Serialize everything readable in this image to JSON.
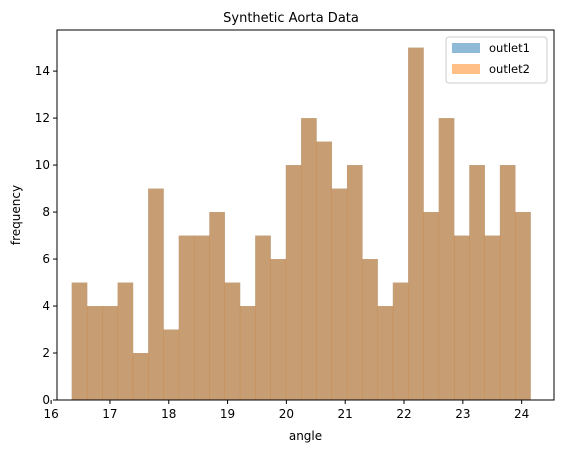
{
  "chart_data": {
    "type": "bar",
    "title": "Synthetic Aorta Data",
    "xlabel": "angle",
    "ylabel": "frequency",
    "xlim": [
      16.1,
      24.55
    ],
    "ylim": [
      0,
      15.75
    ],
    "xticks": [
      "16",
      "17",
      "18",
      "19",
      "20",
      "21",
      "22",
      "23",
      "24"
    ],
    "yticks": [
      "0",
      "2",
      "4",
      "6",
      "8",
      "10",
      "12",
      "14"
    ],
    "bin_edges": [
      16.35,
      16.61,
      16.87,
      17.13,
      17.39,
      17.65,
      17.91,
      18.17,
      18.43,
      18.69,
      18.95,
      19.21,
      19.47,
      19.73,
      19.99,
      20.25,
      20.51,
      20.77,
      21.03,
      21.29,
      21.55,
      21.81,
      22.07,
      22.33,
      22.59,
      22.85,
      23.11,
      23.37,
      23.63,
      23.89,
      24.15
    ],
    "series": [
      {
        "name": "outlet1",
        "color": "#1f77b4",
        "opacity": 0.5,
        "values": [
          5,
          4,
          4,
          5,
          2,
          9,
          3,
          7,
          7,
          8,
          5,
          4,
          7,
          6,
          10,
          12,
          11,
          9,
          10,
          6,
          4,
          5,
          15,
          8,
          12,
          7,
          10,
          7,
          10,
          8
        ]
      },
      {
        "name": "outlet2",
        "color": "#ff7f0e",
        "opacity": 0.5,
        "values": [
          5,
          4,
          4,
          5,
          2,
          9,
          3,
          7,
          7,
          8,
          5,
          4,
          7,
          6,
          10,
          12,
          11,
          9,
          10,
          6,
          4,
          5,
          15,
          8,
          12,
          7,
          10,
          7,
          10,
          8
        ]
      }
    ],
    "grid": false,
    "legend_position": "top-right"
  }
}
